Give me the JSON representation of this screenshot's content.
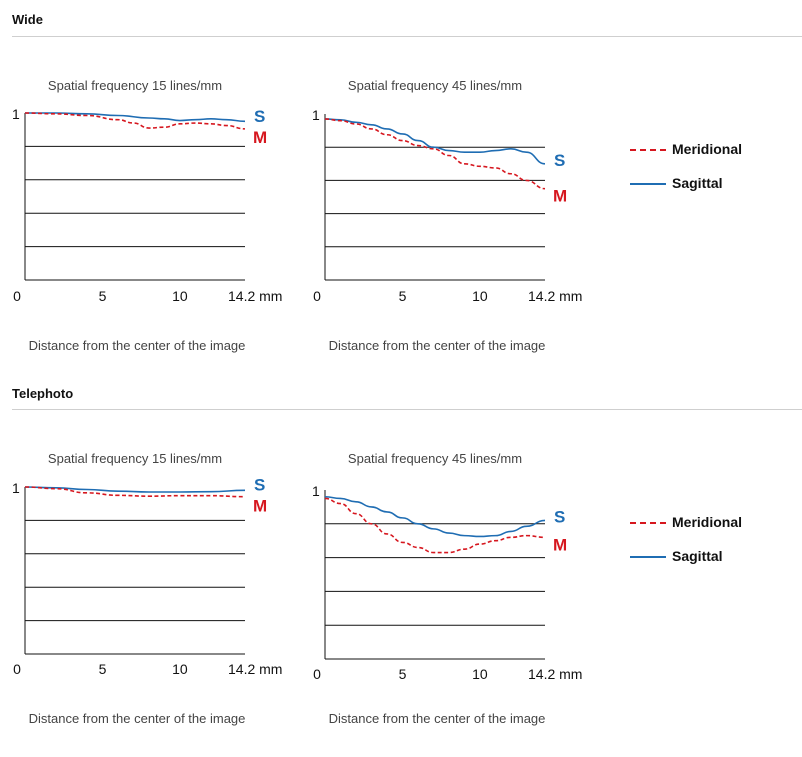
{
  "sections": [
    {
      "title": "Wide",
      "charts": [
        {
          "title": "Spatial frequency 15 lines/mm",
          "xlabel": "Distance from the center of the image",
          "x_ticks": [
            "0",
            "5",
            "10",
            "14.2 mm"
          ],
          "y_tick": "1",
          "series_labels": {
            "sagittal": "S",
            "meridional": "M"
          }
        },
        {
          "title": "Spatial frequency 45 lines/mm",
          "xlabel": "Distance from the center of the image",
          "x_ticks": [
            "0",
            "5",
            "10",
            "14.2 mm"
          ],
          "y_tick": "1",
          "series_labels": {
            "sagittal": "S",
            "meridional": "M"
          }
        }
      ]
    },
    {
      "title": "Telephoto",
      "charts": [
        {
          "title": "Spatial frequency 15 lines/mm",
          "xlabel": "Distance from the center of the image",
          "x_ticks": [
            "0",
            "5",
            "10",
            "14.2 mm"
          ],
          "y_tick": "1",
          "series_labels": {
            "sagittal": "S",
            "meridional": "M"
          }
        },
        {
          "title": "Spatial frequency 45 lines/mm",
          "xlabel": "Distance from the center of the image",
          "x_ticks": [
            "0",
            "5",
            "10",
            "14.2 mm"
          ],
          "y_tick": "1",
          "series_labels": {
            "sagittal": "S",
            "meridional": "M"
          }
        }
      ]
    }
  ],
  "legend": {
    "meridional": "Meridional",
    "sagittal": "Sagittal"
  },
  "colors": {
    "sagittal": "#1f6db3",
    "meridional": "#d6171f",
    "grid": "#111111"
  },
  "chart_data": [
    {
      "type": "line",
      "group": "Wide",
      "title": "Spatial frequency 15 lines/mm",
      "xlabel": "Distance from the center of the image",
      "xlim": [
        0,
        14.2
      ],
      "ylim": [
        0,
        1
      ],
      "series": [
        {
          "name": "Sagittal",
          "style": "solid",
          "x": [
            0,
            2,
            4,
            6,
            8,
            9,
            10,
            11,
            12,
            13,
            14.2
          ],
          "y": [
            1.0,
            1.0,
            0.995,
            0.985,
            0.97,
            0.965,
            0.955,
            0.96,
            0.965,
            0.96,
            0.95
          ]
        },
        {
          "name": "Meridional",
          "style": "dashed",
          "x": [
            0,
            2,
            4,
            6,
            7,
            8,
            9,
            10,
            11,
            12,
            13,
            14.2
          ],
          "y": [
            1.0,
            0.995,
            0.985,
            0.96,
            0.94,
            0.91,
            0.915,
            0.935,
            0.94,
            0.935,
            0.925,
            0.905
          ]
        }
      ]
    },
    {
      "type": "line",
      "group": "Wide",
      "title": "Spatial frequency 45 lines/mm",
      "xlabel": "Distance from the center of the image",
      "xlim": [
        0,
        14.2
      ],
      "ylim": [
        0,
        1
      ],
      "series": [
        {
          "name": "Sagittal",
          "style": "solid",
          "x": [
            0,
            1,
            2,
            3,
            4,
            5,
            6,
            7,
            8,
            9,
            10,
            11,
            12,
            13,
            14.2
          ],
          "y": [
            0.97,
            0.965,
            0.95,
            0.935,
            0.91,
            0.88,
            0.84,
            0.8,
            0.78,
            0.77,
            0.77,
            0.78,
            0.79,
            0.77,
            0.7
          ]
        },
        {
          "name": "Meridional",
          "style": "dashed",
          "x": [
            0,
            1,
            2,
            3,
            4,
            5,
            6,
            7,
            8,
            9,
            10,
            11,
            12,
            13,
            14.2
          ],
          "y": [
            0.97,
            0.96,
            0.94,
            0.91,
            0.875,
            0.84,
            0.81,
            0.79,
            0.75,
            0.7,
            0.685,
            0.675,
            0.64,
            0.6,
            0.55
          ]
        }
      ]
    },
    {
      "type": "line",
      "group": "Telephoto",
      "title": "Spatial frequency 15 lines/mm",
      "xlabel": "Distance from the center of the image",
      "xlim": [
        0,
        14.2
      ],
      "ylim": [
        0,
        1
      ],
      "series": [
        {
          "name": "Sagittal",
          "style": "solid",
          "x": [
            0,
            2,
            4,
            6,
            8,
            10,
            12,
            14.2
          ],
          "y": [
            1.0,
            0.995,
            0.985,
            0.975,
            0.97,
            0.97,
            0.972,
            0.98
          ]
        },
        {
          "name": "Meridional",
          "style": "dashed",
          "x": [
            0,
            2,
            4,
            6,
            8,
            10,
            12,
            14.2
          ],
          "y": [
            1.0,
            0.99,
            0.965,
            0.95,
            0.945,
            0.948,
            0.948,
            0.942
          ]
        }
      ]
    },
    {
      "type": "line",
      "group": "Telephoto",
      "title": "Spatial frequency 45 lines/mm",
      "xlabel": "Distance from the center of the image",
      "xlim": [
        0,
        14.2
      ],
      "ylim": [
        0,
        1
      ],
      "series": [
        {
          "name": "Sagittal",
          "style": "solid",
          "x": [
            0,
            1,
            2,
            3,
            4,
            5,
            6,
            7,
            8,
            9,
            10,
            11,
            12,
            13,
            14.2
          ],
          "y": [
            0.96,
            0.95,
            0.93,
            0.9,
            0.87,
            0.835,
            0.8,
            0.77,
            0.745,
            0.73,
            0.725,
            0.73,
            0.755,
            0.785,
            0.82
          ]
        },
        {
          "name": "Meridional",
          "style": "dashed",
          "x": [
            0,
            1,
            2,
            3,
            4,
            5,
            6,
            7,
            8,
            9,
            10,
            11,
            12,
            13,
            14.2
          ],
          "y": [
            0.95,
            0.92,
            0.86,
            0.8,
            0.74,
            0.69,
            0.66,
            0.63,
            0.63,
            0.65,
            0.68,
            0.7,
            0.72,
            0.73,
            0.72
          ]
        }
      ]
    }
  ]
}
